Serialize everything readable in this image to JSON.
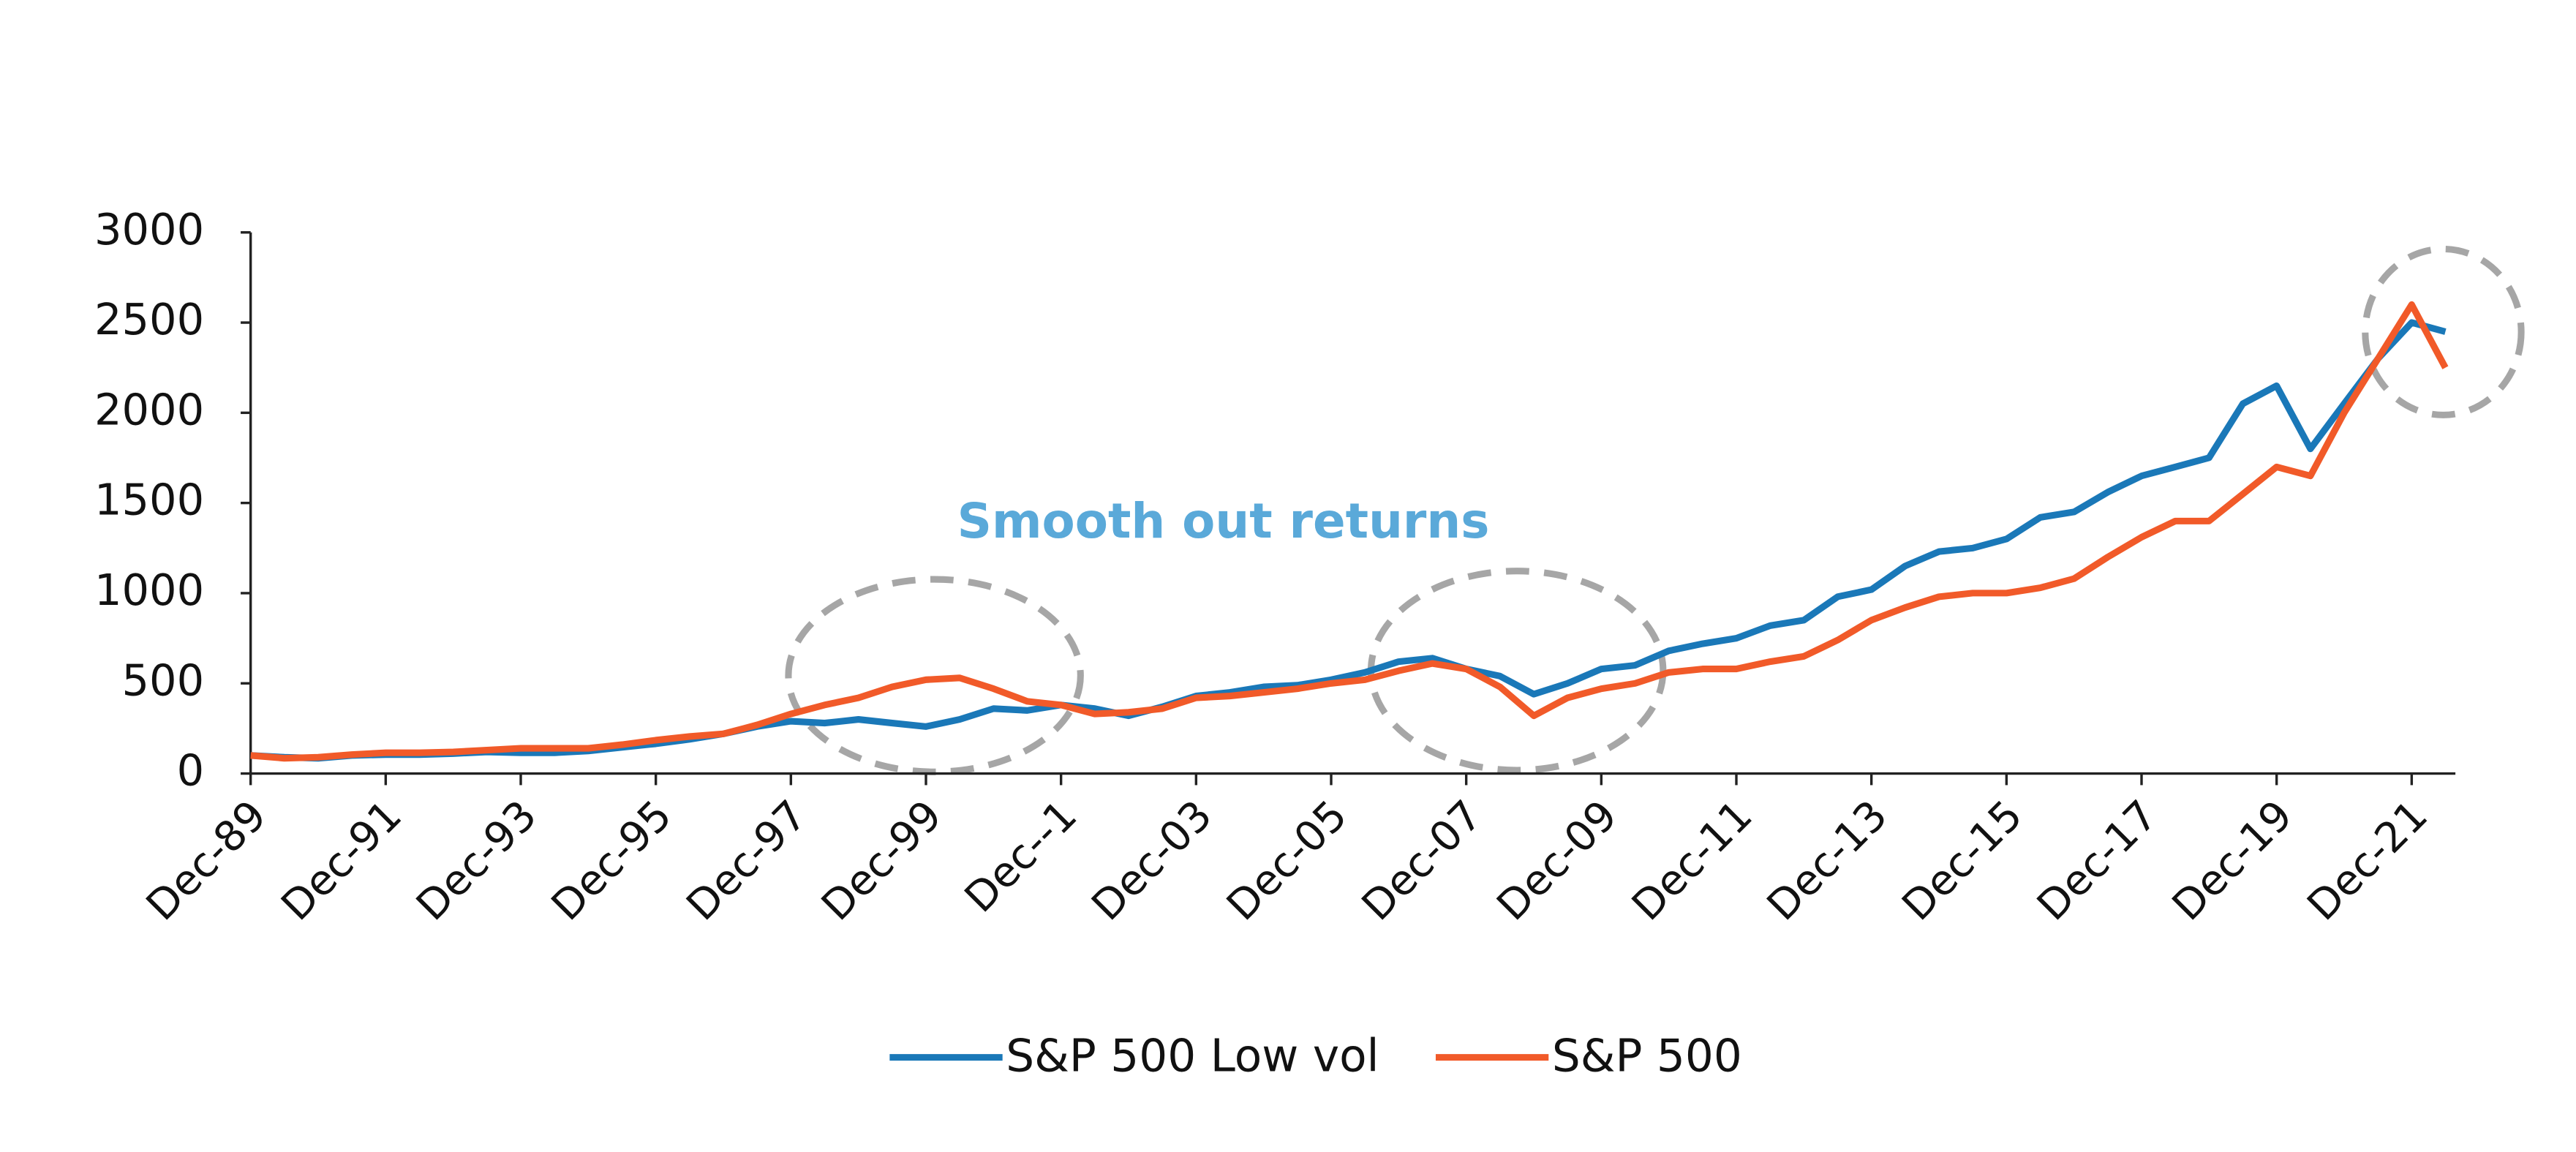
{
  "chart_data": {
    "type": "line",
    "annotation": "Smooth out returns",
    "categories": [
      "Dec-89",
      null,
      null,
      null,
      "Dec-91",
      null,
      null,
      null,
      "Dec-93",
      null,
      null,
      null,
      "Dec-95",
      null,
      null,
      null,
      "Dec-97",
      null,
      null,
      null,
      "Dec-99",
      null,
      null,
      null,
      "Dec--1",
      null,
      null,
      null,
      "Dec-03",
      null,
      null,
      null,
      "Dec-05",
      null,
      null,
      null,
      "Dec-07",
      null,
      null,
      null,
      "Dec-09",
      null,
      null,
      null,
      "Dec-11",
      null,
      null,
      null,
      "Dec-13",
      null,
      null,
      null,
      "Dec-15",
      null,
      null,
      null,
      "Dec-17",
      null,
      null,
      null,
      "Dec-19",
      null,
      null,
      null,
      "Dec-21",
      null
    ],
    "series": [
      {
        "name": "S&P 500 Low vol",
        "color": "#1a78b8",
        "values": [
          100,
          90,
          85,
          100,
          105,
          105,
          110,
          120,
          115,
          115,
          125,
          145,
          165,
          190,
          220,
          260,
          290,
          280,
          300,
          280,
          260,
          300,
          360,
          350,
          380,
          360,
          320,
          370,
          430,
          450,
          480,
          490,
          520,
          560,
          620,
          640,
          580,
          540,
          440,
          500,
          580,
          600,
          680,
          720,
          750,
          820,
          850,
          980,
          1020,
          1150,
          1230,
          1250,
          1300,
          1420,
          1450,
          1560,
          1650,
          1700,
          1750,
          2050,
          2150,
          1800,
          2050,
          2300,
          2500,
          2450
        ]
      },
      {
        "name": "S&P 500",
        "color": "#f15a29",
        "values": [
          100,
          85,
          90,
          105,
          115,
          115,
          120,
          130,
          140,
          140,
          140,
          160,
          185,
          205,
          220,
          270,
          330,
          380,
          420,
          480,
          520,
          530,
          470,
          400,
          380,
          330,
          340,
          360,
          420,
          430,
          450,
          470,
          500,
          520,
          570,
          610,
          580,
          480,
          320,
          420,
          470,
          500,
          560,
          580,
          580,
          620,
          650,
          740,
          850,
          920,
          980,
          1000,
          1000,
          1030,
          1080,
          1200,
          1310,
          1400,
          1400,
          1550,
          1700,
          1650,
          2000,
          2300,
          2600,
          2250
        ]
      }
    ],
    "ylim": [
      0,
      3000
    ],
    "yticks": [
      0,
      500,
      1000,
      1500,
      2000,
      2500,
      3000
    ],
    "grid": false,
    "legend": "bottom"
  }
}
